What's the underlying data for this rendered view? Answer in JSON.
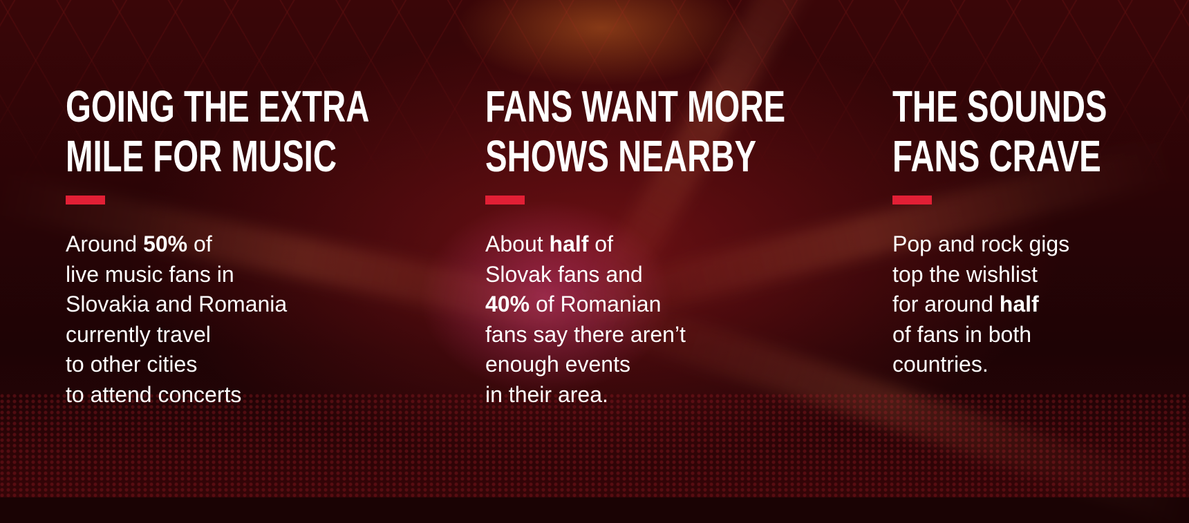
{
  "accent_color": "#e21f35",
  "columns": [
    {
      "title_lines": [
        "GOING THE EXTRA",
        "MILE FOR MUSIC"
      ],
      "body": [
        [
          {
            "t": "Around "
          },
          {
            "t": "50%",
            "b": true
          },
          {
            "t": " of"
          }
        ],
        [
          {
            "t": "live music fans in"
          }
        ],
        [
          {
            "t": "Slovakia and Romania"
          }
        ],
        [
          {
            "t": "currently travel"
          }
        ],
        [
          {
            "t": "to other cities"
          }
        ],
        [
          {
            "t": "to attend concerts"
          }
        ]
      ]
    },
    {
      "title_lines": [
        "FANS WANT MORE",
        "SHOWS NEARBY"
      ],
      "body": [
        [
          {
            "t": "About "
          },
          {
            "t": "half",
            "b": true
          },
          {
            "t": " of"
          }
        ],
        [
          {
            "t": "Slovak fans and"
          }
        ],
        [
          {
            "t": "40%",
            "b": true
          },
          {
            "t": " of Romanian"
          }
        ],
        [
          {
            "t": "fans say there aren’t"
          }
        ],
        [
          {
            "t": "enough events"
          }
        ],
        [
          {
            "t": "in their area."
          }
        ]
      ]
    },
    {
      "title_lines": [
        "THE SOUNDS",
        "FANS CRAVE"
      ],
      "body": [
        [
          {
            "t": "Pop and rock gigs"
          }
        ],
        [
          {
            "t": "top the wishlist"
          }
        ],
        [
          {
            "t": "for around "
          },
          {
            "t": "half",
            "b": true
          }
        ],
        [
          {
            "t": "of fans in both"
          }
        ],
        [
          {
            "t": "countries."
          }
        ]
      ]
    }
  ]
}
